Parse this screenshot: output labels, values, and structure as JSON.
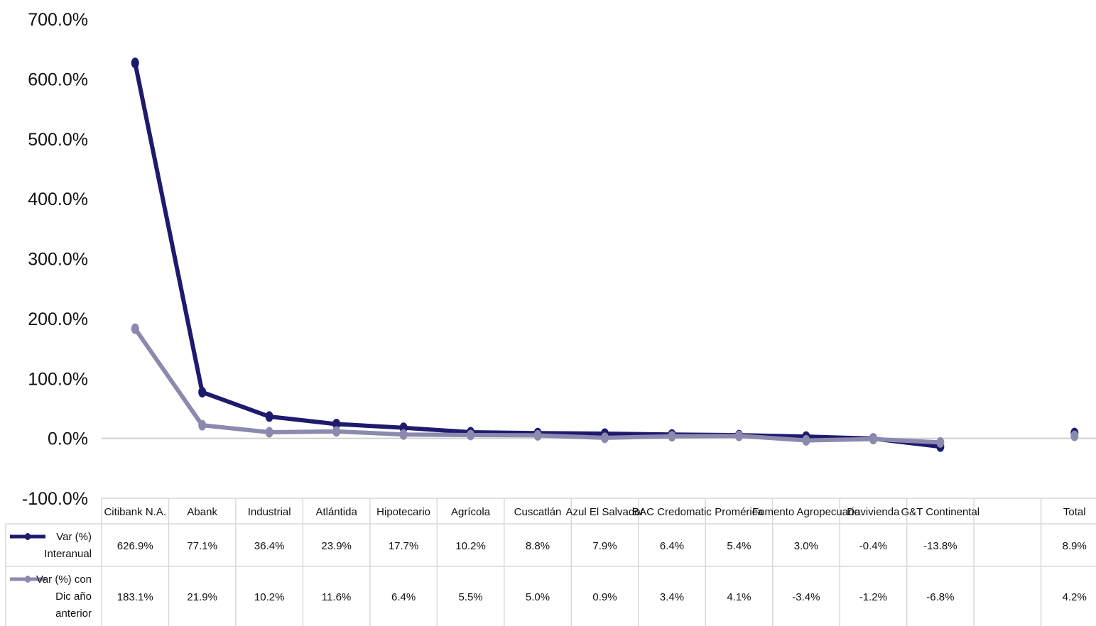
{
  "chart_data": {
    "type": "line",
    "categories": [
      "Citibank N.A.",
      "Abank",
      "Industrial",
      "Atlántida",
      "Hipotecario",
      "Agrícola",
      "Cuscatlán",
      "Azul El Salvador",
      "BAC Credomatic",
      "Promérica",
      "Fomento Agropecuario",
      "Davivienda",
      "G&T Continental",
      "",
      "Total"
    ],
    "y_ticks": [
      "700.0%",
      "600.0%",
      "500.0%",
      "400.0%",
      "300.0%",
      "200.0%",
      "100.0%",
      "0.0%",
      "-100.0%"
    ],
    "ylim": [
      -100,
      700
    ],
    "series": [
      {
        "name": "Var (%) Interanual",
        "legend_lines": [
          "Var (%)",
          "Interanual"
        ],
        "color": "#1e1b6e",
        "values": [
          626.9,
          77.1,
          36.4,
          23.9,
          17.7,
          10.2,
          8.8,
          7.9,
          6.4,
          5.4,
          3.0,
          -0.4,
          -13.8,
          null,
          8.9
        ],
        "labels": [
          "626.9%",
          "77.1%",
          "36.4%",
          "23.9%",
          "17.7%",
          "10.2%",
          "8.8%",
          "7.9%",
          "6.4%",
          "5.4%",
          "3.0%",
          "-0.4%",
          "-13.8%",
          "",
          "8.9%"
        ]
      },
      {
        "name": "Var (%) con Dic año anterior",
        "legend_lines": [
          "Var (%) con",
          "Dic año",
          "anterior"
        ],
        "color": "#8b8aae",
        "values": [
          183.1,
          21.9,
          10.2,
          11.6,
          6.4,
          5.5,
          5.0,
          0.9,
          3.4,
          4.1,
          -3.4,
          -1.2,
          -6.8,
          null,
          4.2
        ],
        "labels": [
          "183.1%",
          "21.9%",
          "10.2%",
          "11.6%",
          "6.4%",
          "5.5%",
          "5.0%",
          "0.9%",
          "3.4%",
          "4.1%",
          "-3.4%",
          "-1.2%",
          "-6.8%",
          "",
          "4.2%"
        ]
      }
    ],
    "grid": false,
    "data_table": true
  }
}
